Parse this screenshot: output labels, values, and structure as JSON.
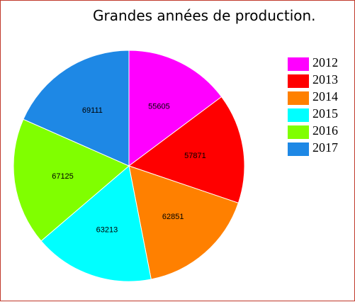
{
  "chart_data": {
    "type": "pie",
    "title": "Grandes années de production.",
    "categories": [
      "2012",
      "2013",
      "2014",
      "2015",
      "2016",
      "2017"
    ],
    "values": [
      55605,
      57871,
      62851,
      63213,
      67125,
      69111
    ],
    "colors": [
      "#ff00ff",
      "#ff0000",
      "#ff8000",
      "#00ffff",
      "#80ff00",
      "#1e88e5"
    ],
    "start": "12 o'clock",
    "direction": "clockwise",
    "legend": "right"
  }
}
